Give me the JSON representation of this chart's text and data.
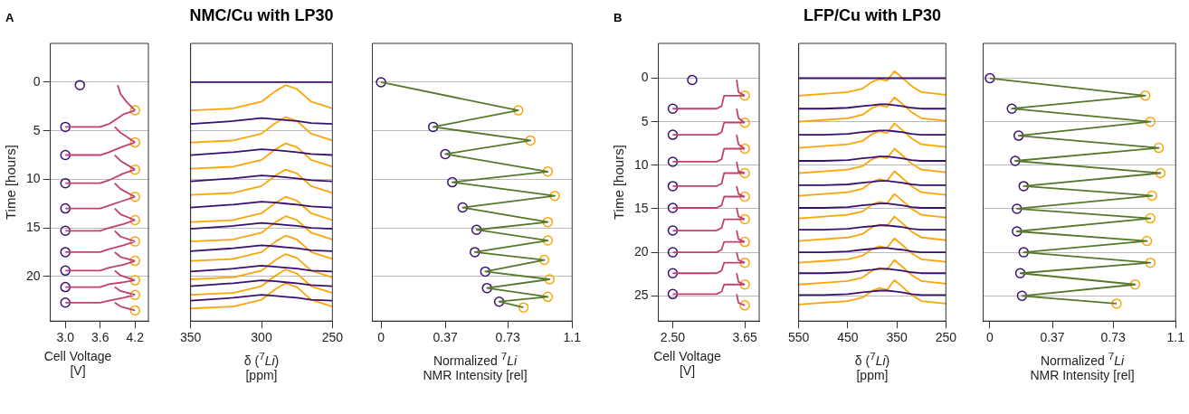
{
  "chart_data": [
    {
      "type": "line",
      "annotations": [
        "A"
      ],
      "xlabel": "Cell Voltage [V]",
      "ylabel": "Time [hours]",
      "xlim": [
        2.74,
        4.43
      ],
      "ylim": [
        24.6,
        -4
      ],
      "xticks": [
        {
          "value": 3,
          "label": "3.0"
        },
        3.6,
        4.2
      ],
      "yticks": [
        0,
        5,
        10,
        15,
        20
      ],
      "grid": "y",
      "series": [
        {
          "type": "line",
          "color": "#c13f73",
          "x": [
            3.9,
            3.95,
            4.05,
            4.2,
            null,
            3.0,
            3.6,
            3.75,
            4.0,
            4.2,
            null,
            3.85,
            3.95,
            4.2,
            null,
            3.0,
            3.6,
            3.75,
            4.0,
            4.2,
            null,
            3.85,
            3.95,
            4.2,
            null,
            3.0,
            3.6,
            3.75,
            4.0,
            4.2,
            null,
            3.85,
            3.95,
            4.2,
            null,
            3.0,
            3.6,
            3.75,
            4.0,
            4.2,
            null,
            3.85,
            3.95,
            4.2,
            null,
            3.0,
            3.6,
            3.75,
            4.0,
            4.2,
            null,
            3.85,
            3.95,
            4.2,
            null,
            3.0,
            3.6,
            3.75,
            4.0,
            4.2,
            null,
            3.85,
            3.95,
            4.2,
            null,
            3.0,
            3.6,
            3.75,
            4.0,
            4.2,
            null,
            3.85,
            3.95,
            4.2,
            null,
            3.0,
            3.6,
            3.75,
            4.0,
            4.2,
            null,
            3.85,
            3.95,
            4.2,
            null,
            3.0,
            3.6,
            3.75,
            4.0,
            4.2,
            null,
            3.85,
            3.95,
            4.2
          ],
          "values": [
            0.3,
            1.2,
            2.0,
            2.9,
            null,
            4.6,
            4.6,
            4.3,
            3.3,
            2.9,
            null,
            4.6,
            5.2,
            6.2,
            null,
            7.5,
            7.5,
            7.2,
            6.6,
            6.2,
            null,
            7.5,
            8.1,
            9.0,
            null,
            10.4,
            10.4,
            10.1,
            9.4,
            9.0,
            null,
            10.4,
            11.0,
            11.8,
            null,
            13.0,
            13.0,
            12.7,
            12.2,
            11.8,
            null,
            13.0,
            13.6,
            14.2,
            null,
            15.3,
            15.3,
            15.0,
            14.6,
            14.2,
            null,
            15.3,
            15.9,
            16.4,
            null,
            17.5,
            17.5,
            17.2,
            16.8,
            16.4,
            null,
            17.5,
            18.0,
            18.4,
            null,
            19.4,
            19.4,
            19.1,
            18.8,
            18.4,
            null,
            19.4,
            19.9,
            20.4,
            null,
            21.1,
            21.1,
            20.8,
            20.6,
            20.4,
            null,
            21.1,
            21.5,
            21.9,
            null,
            22.7,
            22.7,
            22.5,
            22.2,
            21.9,
            null,
            22.7,
            23.1,
            23.5
          ]
        },
        {
          "type": "scatter",
          "marker": "circle",
          "color": "#3b0f70",
          "x": [
            3.25,
            3.0,
            3.0,
            3.0,
            3.0,
            3.0,
            3.0,
            3.0,
            3.0,
            3.0
          ],
          "values": [
            0.3,
            4.6,
            7.5,
            10.4,
            13.0,
            15.3,
            17.5,
            19.4,
            21.1,
            22.7
          ]
        },
        {
          "type": "scatter",
          "marker": "circle",
          "color": "#fca50a",
          "x": [
            4.2,
            4.2,
            4.2,
            4.2,
            4.2,
            4.2,
            4.2,
            4.2,
            4.2,
            4.2
          ],
          "values": [
            2.9,
            6.2,
            9.0,
            11.8,
            14.2,
            16.4,
            18.4,
            20.4,
            21.9,
            23.5
          ]
        }
      ]
    },
    {
      "type": "line",
      "title": "NMC/Cu with LP30",
      "xlabel": "δ ($^{7}$Li) [ppm]",
      "xlim": [
        350,
        250
      ],
      "ylim": [
        24.6,
        -4
      ],
      "xticks": [
        350,
        300,
        250
      ],
      "yticks": [
        0,
        5,
        10,
        15,
        20
      ],
      "grid": "y",
      "tick_labels": "x",
      "x": [
        350,
        320,
        300,
        290,
        283,
        275,
        265,
        250
      ],
      "series": [
        {
          "color": "#3b0f70",
          "values": [
            0,
            0,
            0,
            0,
            0,
            0,
            0,
            0
          ]
        },
        {
          "color": "#fca50a",
          "values": [
            2.9,
            2.7,
            2.0,
            0.9,
            0.3,
            0.7,
            2.0,
            2.7
          ]
        },
        {
          "color": "#3b0f70",
          "values": [
            4.3,
            4.0,
            3.7,
            3.8,
            3.9,
            4.0,
            4.2,
            4.3
          ]
        },
        {
          "color": "#fca50a",
          "values": [
            6.2,
            6.0,
            5.3,
            4.2,
            3.6,
            4.0,
            5.3,
            6.0
          ]
        },
        {
          "color": "#3b0f70",
          "values": [
            7.5,
            7.2,
            6.9,
            7.0,
            7.1,
            7.2,
            7.4,
            7.5
          ]
        },
        {
          "color": "#fca50a",
          "values": [
            8.9,
            8.7,
            8.0,
            6.9,
            6.3,
            6.7,
            8.0,
            8.7
          ]
        },
        {
          "color": "#3b0f70",
          "values": [
            10.2,
            9.9,
            9.6,
            9.7,
            9.8,
            9.9,
            10.1,
            10.2
          ]
        },
        {
          "color": "#fca50a",
          "values": [
            11.6,
            11.4,
            10.7,
            9.6,
            9.0,
            9.4,
            10.7,
            11.4
          ]
        },
        {
          "color": "#3b0f70",
          "values": [
            12.9,
            12.6,
            12.3,
            12.4,
            12.5,
            12.6,
            12.8,
            12.9
          ]
        },
        {
          "color": "#fca50a",
          "values": [
            14.4,
            14.2,
            13.5,
            12.4,
            11.8,
            12.2,
            13.5,
            14.2
          ]
        },
        {
          "color": "#3b0f70",
          "values": [
            15.1,
            14.8,
            14.5,
            14.6,
            14.7,
            14.8,
            15.0,
            15.1
          ]
        },
        {
          "color": "#fca50a",
          "values": [
            16.4,
            16.2,
            15.5,
            14.4,
            13.8,
            14.2,
            15.5,
            16.2
          ]
        },
        {
          "color": "#3b0f70",
          "values": [
            17.4,
            17.1,
            16.8,
            16.9,
            17.0,
            17.1,
            17.3,
            17.4
          ]
        },
        {
          "color": "#fca50a",
          "values": [
            18.4,
            18.2,
            17.5,
            16.4,
            15.8,
            16.2,
            17.5,
            18.2
          ]
        },
        {
          "color": "#3b0f70",
          "values": [
            19.5,
            19.2,
            18.9,
            19.0,
            19.1,
            19.2,
            19.4,
            19.5
          ]
        },
        {
          "color": "#fca50a",
          "values": [
            20.3,
            20.1,
            19.4,
            18.3,
            17.7,
            18.1,
            19.4,
            20.1
          ]
        },
        {
          "color": "#3b0f70",
          "values": [
            21.0,
            20.7,
            20.4,
            20.5,
            20.6,
            20.7,
            20.9,
            21.0
          ]
        },
        {
          "color": "#fca50a",
          "values": [
            21.9,
            21.7,
            21.0,
            19.9,
            19.3,
            19.7,
            21.0,
            21.7
          ]
        },
        {
          "color": "#3b0f70",
          "values": [
            22.5,
            22.2,
            21.9,
            22.0,
            22.1,
            22.2,
            22.4,
            22.5
          ]
        },
        {
          "color": "#fca50a",
          "values": [
            23.3,
            23.1,
            22.4,
            21.3,
            20.7,
            21.1,
            22.4,
            23.1
          ]
        }
      ]
    },
    {
      "type": "line",
      "xlabel": "Normalized $^{7}$Li NMR Intensity [rel]",
      "xlim": [
        -0.05,
        1.1
      ],
      "ylim": [
        24.6,
        -4
      ],
      "xticks": [
        0,
        0.37,
        0.73,
        1.1
      ],
      "yticks": [
        0,
        5,
        10,
        15,
        20
      ],
      "grid": "y",
      "tick_labels": "x",
      "series": [
        {
          "type": "line",
          "color": "#55782c",
          "x": [
            0,
            0.79,
            0.3,
            0.86,
            0.37,
            0.96,
            0.41,
            1.0,
            0.47,
            0.96,
            0.55,
            0.96,
            0.54,
            0.94,
            0.6,
            0.97,
            0.61,
            0.96,
            0.68,
            0.82
          ],
          "values": [
            0,
            2.9,
            4.6,
            6.0,
            7.4,
            9.2,
            10.3,
            11.7,
            12.9,
            14.4,
            15.2,
            16.3,
            17.5,
            18.3,
            19.5,
            20.3,
            21.2,
            22.1,
            22.6,
            23.2
          ]
        },
        {
          "type": "scatter",
          "marker": "circle",
          "color": "#3b0f70",
          "x": [
            0,
            0.3,
            0.37,
            0.41,
            0.47,
            0.55,
            0.54,
            0.6,
            0.61,
            0.68
          ],
          "values": [
            0,
            4.6,
            7.4,
            10.3,
            12.9,
            15.2,
            17.5,
            19.5,
            21.2,
            22.6
          ]
        },
        {
          "type": "scatter",
          "marker": "circle",
          "color": "#fca50a",
          "x": [
            0.79,
            0.86,
            0.96,
            1.0,
            0.96,
            0.96,
            0.94,
            0.97,
            0.96,
            0.82
          ],
          "values": [
            2.9,
            6.0,
            9.2,
            11.7,
            14.4,
            16.3,
            18.3,
            20.3,
            22.1,
            23.2
          ]
        }
      ]
    },
    {
      "type": "line",
      "annotations": [
        "B"
      ],
      "xlabel": "Cell Voltage [V]",
      "ylabel": "Time [hours]",
      "xlim": [
        2.27,
        3.88
      ],
      "ylim": [
        27.9,
        -4
      ],
      "xticks": [
        {
          "value": 2.5,
          "label": "2.50"
        },
        3.65
      ],
      "yticks": [
        0,
        5,
        10,
        15,
        20,
        25
      ],
      "grid": "y",
      "series": [
        {
          "type": "line",
          "color": "#c13f73",
          "x": [
            3.52,
            3.55,
            3.65,
            null,
            2.5,
            3.2,
            3.28,
            3.32,
            3.65,
            null,
            3.52,
            3.55,
            3.65,
            null,
            2.5,
            3.2,
            3.28,
            3.32,
            3.65,
            null,
            3.52,
            3.55,
            3.65,
            null,
            2.5,
            3.2,
            3.28,
            3.32,
            3.65,
            null,
            3.52,
            3.55,
            3.65,
            null,
            2.5,
            3.2,
            3.28,
            3.32,
            3.65,
            null,
            3.52,
            3.55,
            3.65,
            null,
            2.5,
            3.2,
            3.28,
            3.32,
            3.65,
            null,
            3.52,
            3.55,
            3.65,
            null,
            2.5,
            3.2,
            3.28,
            3.32,
            3.65,
            null,
            3.52,
            3.55,
            3.65,
            null,
            2.5,
            3.2,
            3.28,
            3.32,
            3.65,
            null,
            3.52,
            3.55,
            3.65,
            null,
            2.5,
            3.2,
            3.28,
            3.32,
            3.65,
            null,
            3.52,
            3.55,
            3.65,
            null,
            2.5,
            3.2,
            3.28,
            3.32,
            3.65,
            null,
            3.52,
            3.55,
            3.65
          ],
          "values": [
            0.2,
            1.6,
            2.0,
            null,
            3.5,
            3.5,
            3.2,
            2.0,
            2.0,
            null,
            3.5,
            4.6,
            5.1,
            null,
            6.5,
            6.5,
            6.2,
            5.1,
            5.1,
            null,
            6.5,
            7.6,
            8.1,
            null,
            9.6,
            9.6,
            9.3,
            8.1,
            8.1,
            null,
            9.6,
            10.7,
            10.9,
            null,
            12.4,
            12.4,
            12.1,
            10.9,
            10.9,
            null,
            12.4,
            13.3,
            13.6,
            null,
            14.9,
            14.9,
            14.6,
            13.6,
            13.6,
            null,
            14.9,
            15.9,
            16.2,
            null,
            17.5,
            17.5,
            17.2,
            16.2,
            16.2,
            null,
            17.5,
            18.5,
            18.8,
            null,
            20.0,
            20.0,
            19.7,
            18.8,
            18.8,
            null,
            20.0,
            20.9,
            21.2,
            null,
            22.4,
            22.4,
            22.1,
            21.2,
            21.2,
            null,
            22.4,
            23.4,
            23.7,
            null,
            24.8,
            24.8,
            24.5,
            23.7,
            23.7,
            null,
            24.8,
            25.8,
            26.1
          ]
        },
        {
          "type": "scatter",
          "marker": "circle",
          "color": "#3b0f70",
          "x": [
            2.81,
            2.5,
            2.5,
            2.5,
            2.5,
            2.5,
            2.5,
            2.5,
            2.5,
            2.5
          ],
          "values": [
            0.2,
            3.5,
            6.5,
            9.6,
            12.4,
            14.9,
            17.5,
            20.0,
            22.4,
            24.8
          ]
        },
        {
          "type": "scatter",
          "marker": "circle",
          "color": "#fca50a",
          "x": [
            3.65,
            3.65,
            3.65,
            3.65,
            3.65,
            3.65,
            3.65,
            3.65,
            3.65,
            3.65
          ],
          "values": [
            2.0,
            5.1,
            8.1,
            10.9,
            13.6,
            16.2,
            18.8,
            21.2,
            23.7,
            26.1
          ]
        }
      ]
    },
    {
      "type": "line",
      "title": "LFP/Cu with LP30",
      "xlabel": "δ ($^{7}$Li) [ppm]",
      "xlim": [
        550,
        250
      ],
      "ylim": [
        27.9,
        -4
      ],
      "xticks": [
        550,
        450,
        350,
        250
      ],
      "yticks": [
        0,
        5,
        10,
        15,
        20,
        25
      ],
      "grid": "y",
      "tick_labels": "x",
      "x": [
        550,
        500,
        450,
        420,
        400,
        385,
        370,
        355,
        340,
        320,
        300,
        250
      ],
      "series": [
        {
          "color": "#3b0f70",
          "values": [
            0,
            0,
            0,
            0,
            0,
            0,
            0,
            0,
            0,
            0,
            0,
            0
          ]
        },
        {
          "color": "#fca50a",
          "values": [
            2.0,
            1.8,
            1.6,
            1.2,
            0.4,
            0.1,
            0.3,
            -0.8,
            -0.1,
            0.9,
            1.6,
            1.9
          ]
        },
        {
          "color": "#3b0f70",
          "values": [
            3.5,
            3.5,
            3.4,
            3.2,
            3.1,
            3.0,
            3.0,
            3.1,
            3.2,
            3.4,
            3.5,
            3.5
          ]
        },
        {
          "color": "#fca50a",
          "values": [
            5.0,
            4.8,
            4.6,
            4.2,
            3.4,
            3.1,
            3.3,
            2.2,
            2.9,
            3.9,
            4.6,
            4.9
          ]
        },
        {
          "color": "#3b0f70",
          "values": [
            6.5,
            6.5,
            6.4,
            6.2,
            6.1,
            6.0,
            6.0,
            6.1,
            6.2,
            6.4,
            6.5,
            6.5
          ]
        },
        {
          "color": "#fca50a",
          "values": [
            8.0,
            7.8,
            7.6,
            7.2,
            6.4,
            6.1,
            6.3,
            5.2,
            5.9,
            6.9,
            7.6,
            7.9
          ]
        },
        {
          "color": "#3b0f70",
          "values": [
            9.5,
            9.5,
            9.4,
            9.2,
            9.1,
            9.0,
            9.0,
            9.1,
            9.2,
            9.4,
            9.5,
            9.5
          ]
        },
        {
          "color": "#fca50a",
          "values": [
            10.9,
            10.7,
            10.5,
            10.1,
            9.3,
            9.0,
            9.2,
            8.1,
            8.8,
            9.8,
            10.5,
            10.8
          ]
        },
        {
          "color": "#3b0f70",
          "values": [
            12.3,
            12.3,
            12.2,
            12.0,
            11.9,
            11.8,
            11.8,
            11.9,
            12.0,
            12.2,
            12.3,
            12.3
          ]
        },
        {
          "color": "#fca50a",
          "values": [
            13.5,
            13.3,
            13.1,
            12.7,
            11.9,
            11.6,
            11.8,
            10.7,
            11.4,
            12.4,
            13.1,
            13.4
          ]
        },
        {
          "color": "#3b0f70",
          "values": [
            14.9,
            14.9,
            14.8,
            14.6,
            14.5,
            14.4,
            14.4,
            14.5,
            14.6,
            14.8,
            14.9,
            14.9
          ]
        },
        {
          "color": "#fca50a",
          "values": [
            16.1,
            15.9,
            15.7,
            15.3,
            14.5,
            14.2,
            14.4,
            13.3,
            14.0,
            15.0,
            15.7,
            16.0
          ]
        },
        {
          "color": "#3b0f70",
          "values": [
            17.4,
            17.4,
            17.3,
            17.1,
            17.0,
            16.9,
            16.9,
            17.0,
            17.1,
            17.3,
            17.4,
            17.4
          ]
        },
        {
          "color": "#fca50a",
          "values": [
            18.7,
            18.5,
            18.3,
            17.9,
            17.1,
            16.8,
            17.0,
            15.9,
            16.6,
            17.6,
            18.3,
            18.6
          ]
        },
        {
          "color": "#3b0f70",
          "values": [
            20.0,
            20.0,
            19.9,
            19.7,
            19.6,
            19.5,
            19.5,
            19.6,
            19.7,
            19.9,
            20.0,
            20.0
          ]
        },
        {
          "color": "#fca50a",
          "values": [
            21.2,
            21.0,
            20.8,
            20.4,
            19.6,
            19.3,
            19.5,
            18.4,
            19.1,
            20.1,
            20.8,
            21.1
          ]
        },
        {
          "color": "#3b0f70",
          "values": [
            22.4,
            22.4,
            22.3,
            22.1,
            22.0,
            21.9,
            21.9,
            22.0,
            22.1,
            22.3,
            22.4,
            22.4
          ]
        },
        {
          "color": "#fca50a",
          "values": [
            23.7,
            23.5,
            23.3,
            22.9,
            22.1,
            21.8,
            22.0,
            20.9,
            21.6,
            22.6,
            23.3,
            23.6
          ]
        },
        {
          "color": "#3b0f70",
          "values": [
            24.9,
            24.9,
            24.8,
            24.6,
            24.5,
            24.4,
            24.4,
            24.5,
            24.6,
            24.8,
            24.9,
            24.9
          ]
        },
        {
          "color": "#fca50a",
          "values": [
            26.0,
            25.8,
            25.6,
            25.2,
            24.4,
            24.1,
            24.3,
            23.2,
            23.9,
            24.9,
            25.6,
            25.9
          ]
        }
      ]
    },
    {
      "type": "line",
      "xlabel": "Normalized $^{7}$Li NMR Intensity [rel]",
      "xlim": [
        -0.04,
        1.1
      ],
      "ylim": [
        27.9,
        -4
      ],
      "xticks": [
        0,
        0.37,
        0.73,
        1.1
      ],
      "yticks": [
        0,
        5,
        10,
        15,
        20,
        25
      ],
      "grid": "y",
      "tick_labels": "x",
      "series": [
        {
          "type": "line",
          "color": "#55782c",
          "x": [
            0,
            0.92,
            0.13,
            0.95,
            0.17,
            1.0,
            0.15,
            1.01,
            0.2,
            0.96,
            0.16,
            0.95,
            0.16,
            0.93,
            0.2,
            0.95,
            0.18,
            0.86,
            0.19,
            0.75
          ],
          "values": [
            0,
            2.0,
            3.5,
            5.0,
            6.6,
            8.0,
            9.5,
            10.9,
            12.4,
            13.5,
            15.0,
            16.1,
            17.6,
            18.7,
            20.0,
            21.2,
            22.4,
            23.7,
            25.0,
            25.9
          ]
        },
        {
          "type": "scatter",
          "marker": "circle",
          "color": "#3b0f70",
          "x": [
            0,
            0.13,
            0.17,
            0.15,
            0.2,
            0.16,
            0.16,
            0.2,
            0.18,
            0.19
          ],
          "values": [
            0,
            3.5,
            6.6,
            9.5,
            12.4,
            15.0,
            17.6,
            20.0,
            22.4,
            25.0
          ]
        },
        {
          "type": "scatter",
          "marker": "circle",
          "color": "#fca50a",
          "x": [
            0.92,
            0.95,
            1.0,
            1.01,
            0.96,
            0.95,
            0.93,
            0.95,
            0.86,
            0.75
          ],
          "values": [
            2.0,
            5.0,
            8.0,
            10.9,
            13.5,
            16.1,
            18.7,
            21.2,
            23.7,
            25.9
          ]
        }
      ]
    }
  ]
}
